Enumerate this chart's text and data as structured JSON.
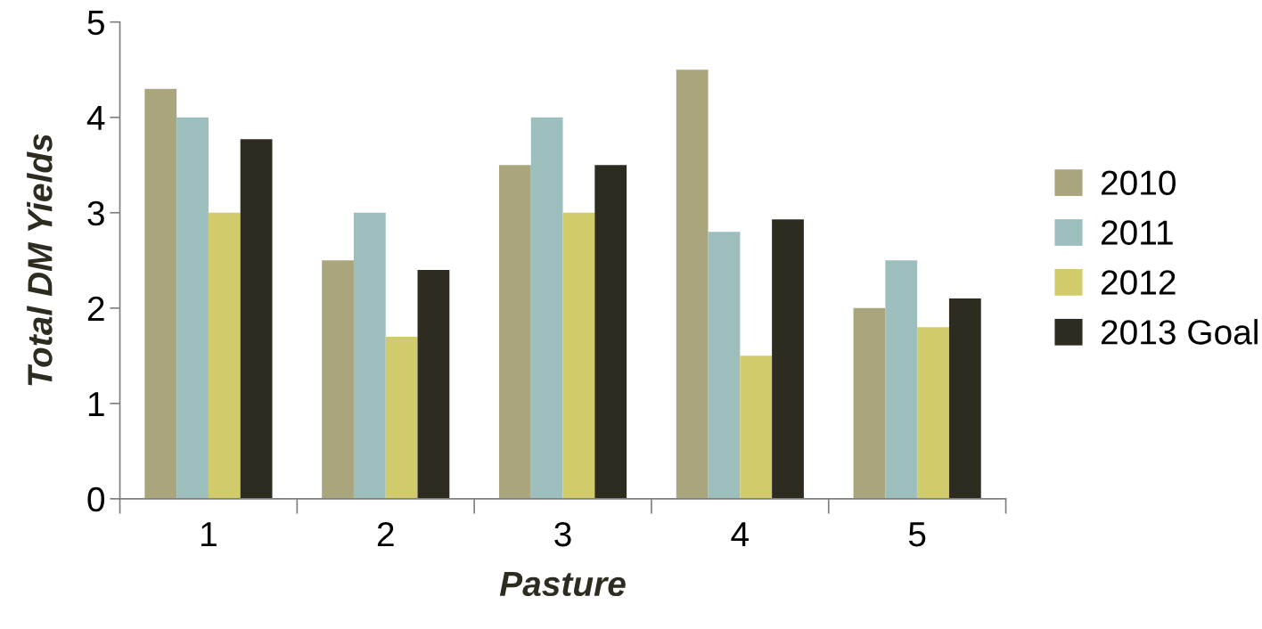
{
  "chart_data": {
    "type": "bar",
    "xlabel": "Pasture",
    "ylabel": "Total DM Yields",
    "categories": [
      "1",
      "2",
      "3",
      "4",
      "5"
    ],
    "series": [
      {
        "name": "2010",
        "color": "#a9a57c",
        "values": [
          4.3,
          2.5,
          3.5,
          4.5,
          2.0
        ]
      },
      {
        "name": "2011",
        "color": "#9cbebd",
        "values": [
          4.0,
          3.0,
          4.0,
          2.8,
          2.5
        ]
      },
      {
        "name": "2012",
        "color": "#d2cb6c",
        "values": [
          3.0,
          1.7,
          3.0,
          1.5,
          1.8
        ]
      },
      {
        "name": "2013 Goal",
        "color": "#2e2b21",
        "values": [
          3.77,
          2.4,
          3.5,
          2.93,
          2.1
        ]
      }
    ],
    "ylim": [
      0,
      5
    ],
    "yticks": [
      0,
      1,
      2,
      3,
      4,
      5
    ],
    "grid": false,
    "legend": "right"
  }
}
